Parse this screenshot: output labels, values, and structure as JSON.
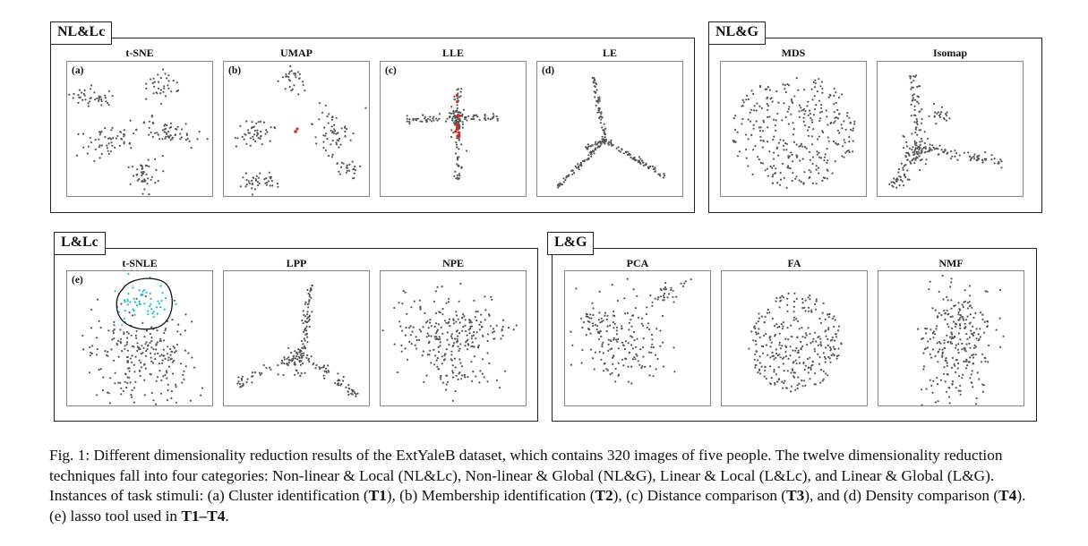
{
  "groups": [
    {
      "id": "nl_lc",
      "label": "NL&Lc"
    },
    {
      "id": "nl_g",
      "label": "NL&G"
    },
    {
      "id": "l_lc",
      "label": "L&Lc"
    },
    {
      "id": "l_g",
      "label": "L&G"
    }
  ],
  "panels": [
    {
      "key": "tsne",
      "title": "t-SNE",
      "label": "(a)",
      "group": "NL&Lc",
      "highlight": "none"
    },
    {
      "key": "umap",
      "title": "UMAP",
      "label": "(b)",
      "group": "NL&Lc",
      "highlight": "red"
    },
    {
      "key": "lle",
      "title": "LLE",
      "label": "(c)",
      "group": "NL&Lc",
      "highlight": "red"
    },
    {
      "key": "le",
      "title": "LE",
      "label": "(d)",
      "group": "NL&Lc",
      "highlight": "none"
    },
    {
      "key": "mds",
      "title": "MDS",
      "label": "",
      "group": "NL&G",
      "highlight": "none"
    },
    {
      "key": "isomap",
      "title": "Isomap",
      "label": "",
      "group": "NL&G",
      "highlight": "none"
    },
    {
      "key": "tsnle",
      "title": "t-SNLE",
      "label": "(e)",
      "group": "L&Lc",
      "highlight": "cyan-lasso"
    },
    {
      "key": "lpp",
      "title": "LPP",
      "label": "",
      "group": "L&Lc",
      "highlight": "none"
    },
    {
      "key": "npe",
      "title": "NPE",
      "label": "",
      "group": "L&Lc",
      "highlight": "none"
    },
    {
      "key": "pca",
      "title": "PCA",
      "label": "",
      "group": "L&G",
      "highlight": "none"
    },
    {
      "key": "fa",
      "title": "FA",
      "label": "",
      "group": "L&G",
      "highlight": "none"
    },
    {
      "key": "nmf",
      "title": "NMF",
      "label": "",
      "group": "L&G",
      "highlight": "none"
    }
  ],
  "colors": {
    "point": "#555555",
    "highlight_red": "#d62728",
    "highlight_cyan": "#17becf",
    "frame": "#222222"
  },
  "caption": {
    "prefix": "Fig. 1: Different dimensionality reduction results of the ExtYaleB dataset, which contains 320 images of five people. The twelve dimensionality reduction techniques fall into four categories: Non-linear & Local (NL&Lc), Non-linear & Global (NL&G), Linear & Local (L&Lc), and Linear & Global (L&G). Instances of task stimuli: (a) Cluster identification (",
    "t1": "T1",
    "mid1": "), (b) Membership identification (",
    "t2": "T2",
    "mid2": "), (c) Distance comparison (",
    "t3": "T3",
    "mid3": "), and (d) Density comparison (",
    "t4": "T4",
    "mid4": "). (e) lasso tool used in ",
    "t1t4": "T1–T4",
    "end": "."
  }
}
